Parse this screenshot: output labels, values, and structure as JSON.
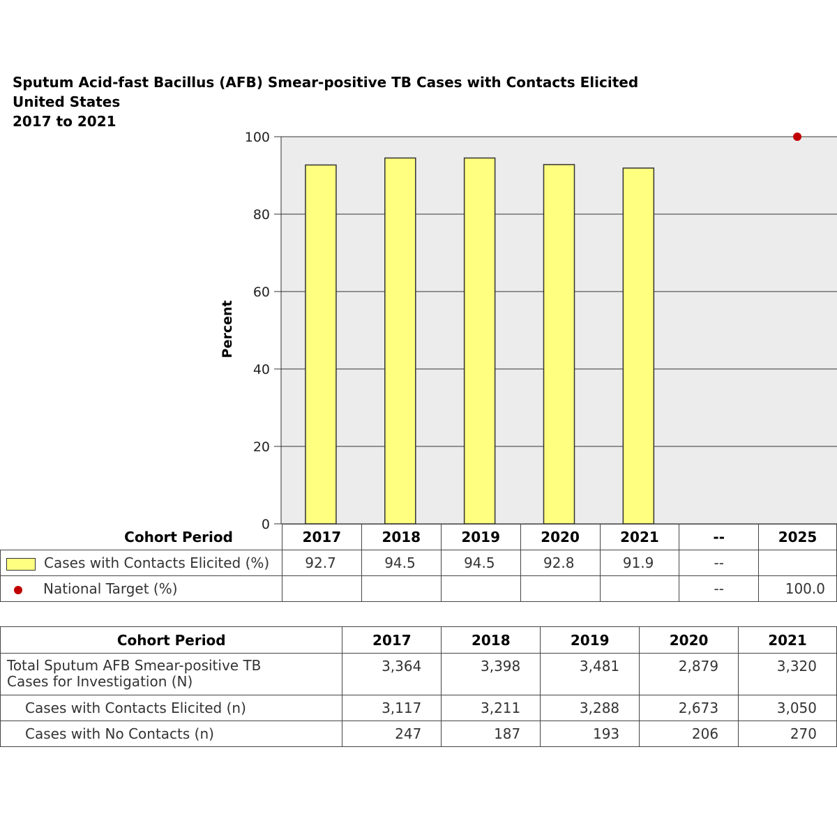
{
  "title": {
    "line1": "Sputum Acid-fast Bacillus (AFB) Smear-positive TB Cases with Contacts Elicited",
    "line2": "United States",
    "line3": "2017 to 2021"
  },
  "colors": {
    "bar": "#ffff80",
    "target": "#c00000",
    "plot_bg": "#ececec",
    "grid": "#333333"
  },
  "chart_data": {
    "type": "bar",
    "categories": [
      "2017",
      "2018",
      "2019",
      "2020",
      "2021",
      "--",
      "2025"
    ],
    "ylabel": "Percent",
    "ylim": [
      0,
      100
    ],
    "yticks": [
      0,
      20,
      40,
      60,
      80,
      100
    ],
    "grid": true,
    "series": [
      {
        "name": "Cases with Contacts Elicited (%)",
        "kind": "bar",
        "values": [
          92.7,
          94.5,
          94.5,
          92.8,
          91.9,
          null,
          null
        ]
      },
      {
        "name": "National Target (%)",
        "kind": "point",
        "values": [
          null,
          null,
          null,
          null,
          null,
          null,
          100.0
        ]
      }
    ]
  },
  "legend_table": {
    "header_label": "Cohort Period",
    "columns": [
      "2017",
      "2018",
      "2019",
      "2020",
      "2021",
      "--",
      "2025"
    ],
    "rows": [
      {
        "label": "Cases with Contacts Elicited (%)",
        "cells": [
          "92.7",
          "94.5",
          "94.5",
          "92.8",
          "91.9",
          "--",
          ""
        ]
      },
      {
        "label": "National Target (%)",
        "cells": [
          "",
          "",
          "",
          "",
          "",
          "--",
          "100.0"
        ]
      }
    ]
  },
  "data_table": {
    "header_label": "Cohort Period",
    "columns": [
      "2017",
      "2018",
      "2019",
      "2020",
      "2021"
    ],
    "rows": [
      {
        "label_line1": "Total Sputum AFB Smear-positive TB",
        "label_line2": "Cases for Investigation (N)",
        "cells": [
          "3,364",
          "3,398",
          "3,481",
          "2,879",
          "3,320"
        ]
      },
      {
        "label": "Cases with Contacts Elicited (n)",
        "cells": [
          "3,117",
          "3,211",
          "3,288",
          "2,673",
          "3,050"
        ]
      },
      {
        "label": "Cases with No Contacts (n)",
        "cells": [
          "247",
          "187",
          "193",
          "206",
          "270"
        ]
      }
    ]
  }
}
